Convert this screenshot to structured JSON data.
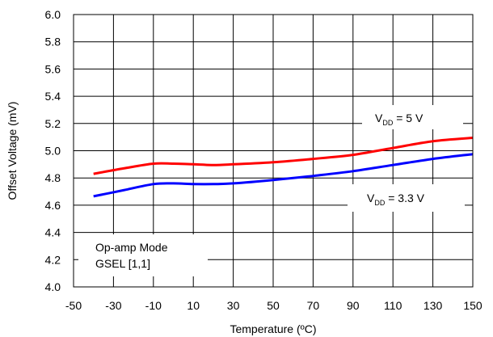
{
  "chart_data": {
    "type": "line",
    "xlabel": "Temperature (ºC)",
    "ylabel": "Offset Voltage (mV)",
    "xlim": [
      -50,
      150
    ],
    "ylim": [
      4.0,
      6.0
    ],
    "x_ticks": [
      -50,
      -30,
      -10,
      10,
      30,
      50,
      70,
      90,
      110,
      130,
      150
    ],
    "y_ticks": [
      "4.0",
      "4.2",
      "4.4",
      "4.6",
      "4.8",
      "5.0",
      "5.2",
      "5.4",
      "5.6",
      "5.8",
      "6.0"
    ],
    "grid": true,
    "series": [
      {
        "name": "VDD = 5 V",
        "color": "#ff0000",
        "x": [
          -40,
          -25,
          -10,
          0,
          10,
          20,
          30,
          50,
          70,
          90,
          110,
          130,
          150
        ],
        "y": [
          4.83,
          4.87,
          4.905,
          4.905,
          4.9,
          4.895,
          4.9,
          4.915,
          4.94,
          4.97,
          5.02,
          5.07,
          5.095
        ]
      },
      {
        "name": "VDD = 3.3 V",
        "color": "#0000ff",
        "x": [
          -40,
          -25,
          -10,
          0,
          10,
          20,
          30,
          50,
          70,
          90,
          110,
          130,
          150
        ],
        "y": [
          4.665,
          4.71,
          4.755,
          4.76,
          4.755,
          4.755,
          4.76,
          4.785,
          4.815,
          4.85,
          4.895,
          4.94,
          4.975
        ]
      }
    ],
    "annotations": {
      "label_5v_main": "V",
      "label_5v_sub": "DD",
      "label_5v_rest": " = 5 V",
      "label_33v_main": "V",
      "label_33v_sub": "DD",
      "label_33v_rest": " = 3.3 V",
      "mode_line1": "Op-amp Mode",
      "mode_line2": "GSEL [1,1]"
    }
  }
}
